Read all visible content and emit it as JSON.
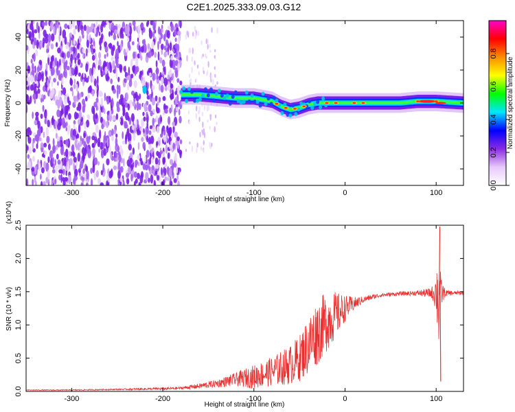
{
  "title": "C2E1.2025.333.09.03.G12",
  "chart_data": [
    {
      "type": "heatmap",
      "xlabel": "Height of straight line (km)",
      "ylabel": "Frequency (Hz)",
      "xlim": [
        -350,
        130
      ],
      "ylim": [
        -50,
        50
      ],
      "xticks": [
        -300,
        -200,
        -100,
        0,
        100
      ],
      "yticks": [
        -40,
        -20,
        0,
        20,
        40
      ],
      "colorbar": {
        "label": "Normalized spectral amplitude",
        "range": [
          0.0,
          1.0
        ],
        "ticks": [
          "0.0",
          "0.2",
          "0.4",
          "0.6",
          "0.8"
        ],
        "colors": [
          "#ffffff",
          "#e7c9fb",
          "#8a2be2",
          "#0000ff",
          "#00e5ff",
          "#00ff00",
          "#ffff00",
          "#ff8c00",
          "#ff0000",
          "#ff00cc"
        ]
      },
      "ridge": {
        "x": [
          -180,
          -160,
          -140,
          -120,
          -100,
          -80,
          -70,
          -60,
          -50,
          -40,
          -30,
          -20,
          0,
          20,
          40,
          60,
          80,
          100,
          130
        ],
        "y": [
          5,
          5,
          4,
          3,
          3,
          1,
          -2,
          -4,
          -3,
          -1,
          0,
          0,
          0,
          0,
          0,
          0,
          1,
          1,
          0
        ]
      },
      "noise_region": [
        -350,
        -180
      ]
    },
    {
      "type": "line",
      "xlabel": "Height of straight line (km)",
      "ylabel": "SNR (10 * v/v)",
      "y_multiplier": "(x10^4)",
      "xlim": [
        -350,
        130
      ],
      "ylim": [
        0,
        2.5
      ],
      "xticks": [
        -300,
        -200,
        -100,
        0,
        100
      ],
      "yticks": [
        "0.0",
        "0.5",
        "1.0",
        "1.5",
        "2.0",
        "2.5"
      ],
      "series": [
        {
          "color": "#e83030",
          "x": [
            -350,
            -300,
            -250,
            -200,
            -180,
            -160,
            -140,
            -120,
            -100,
            -80,
            -60,
            -50,
            -40,
            -30,
            -20,
            -10,
            0,
            10,
            20,
            30,
            40,
            60,
            80,
            95,
            100,
            103,
            105,
            110,
            120,
            130
          ],
          "y": [
            0.02,
            0.02,
            0.03,
            0.04,
            0.05,
            0.08,
            0.12,
            0.18,
            0.22,
            0.3,
            0.4,
            0.5,
            0.7,
            0.9,
            1.05,
            1.15,
            1.25,
            1.32,
            1.38,
            1.42,
            1.45,
            1.47,
            1.48,
            1.48,
            1.5,
            1.4,
            1.48,
            1.48,
            1.48,
            1.48
          ],
          "spread": [
            0.005,
            0.008,
            0.01,
            0.02,
            0.02,
            0.04,
            0.06,
            0.1,
            0.18,
            0.22,
            0.3,
            0.35,
            0.45,
            0.5,
            0.45,
            0.35,
            0.2,
            0.1,
            0.05,
            0.04,
            0.03,
            0.03,
            0.04,
            0.08,
            0.3,
            0.95,
            0.25,
            0.05,
            0.03,
            0.03
          ],
          "peaks": [
            {
              "x": 104,
              "y": 2.48
            },
            {
              "x": 105,
              "y": 0.15
            }
          ]
        }
      ]
    }
  ]
}
